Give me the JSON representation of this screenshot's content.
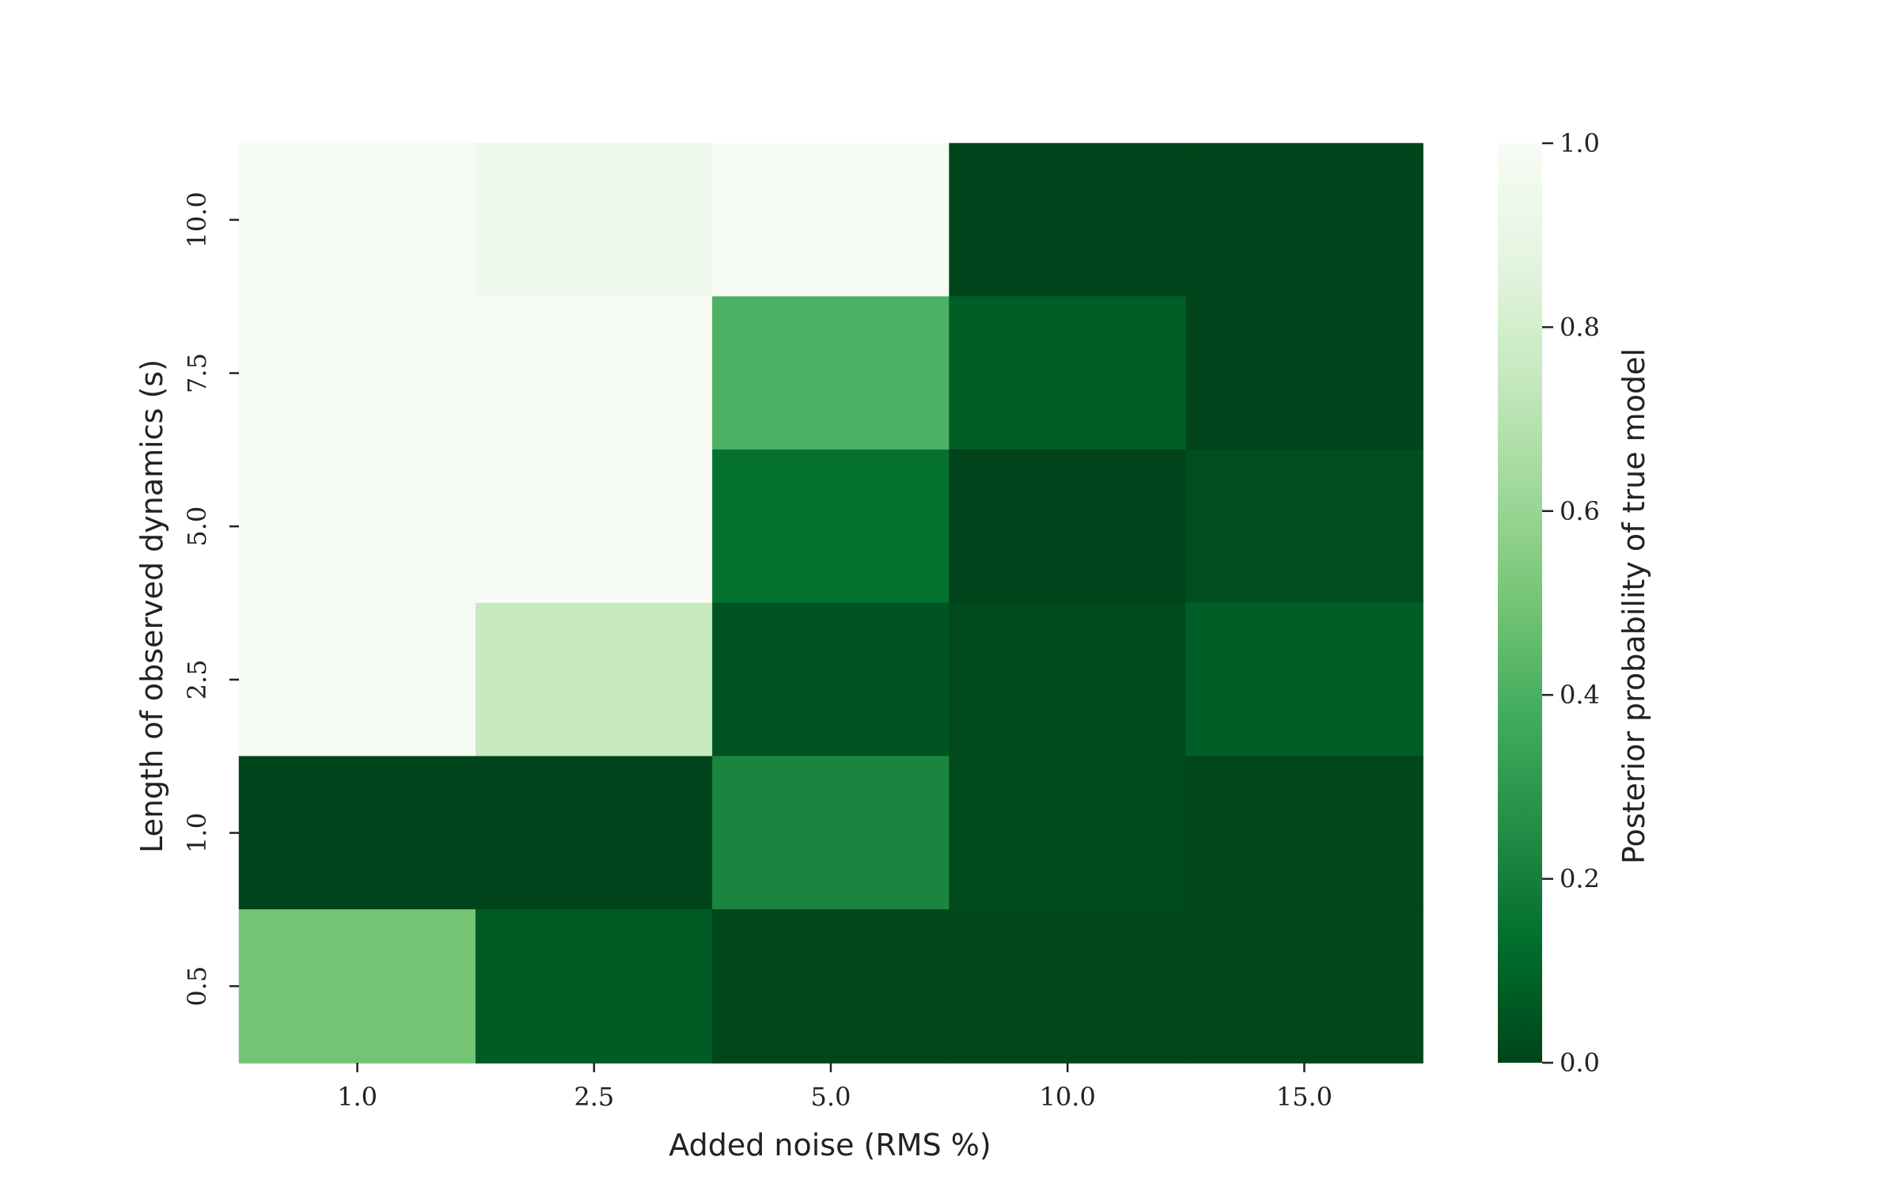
{
  "chart_data": {
    "type": "heatmap",
    "title": "",
    "xlabel": "Added noise (RMS %)",
    "ylabel": "Length of observed dynamics (s)",
    "x_categories": [
      "1.0",
      "2.5",
      "5.0",
      "10.0",
      "15.0"
    ],
    "y_categories": [
      "10.0",
      "7.5",
      "5.0",
      "2.5",
      "1.0",
      "0.5"
    ],
    "values": [
      [
        0.98,
        0.95,
        0.99,
        0.0,
        0.0
      ],
      [
        0.98,
        0.99,
        0.4,
        0.08,
        0.0
      ],
      [
        0.99,
        0.99,
        0.14,
        0.0,
        0.03
      ],
      [
        0.99,
        0.75,
        0.05,
        0.02,
        0.08
      ],
      [
        0.0,
        0.0,
        0.22,
        0.02,
        0.01
      ],
      [
        0.5,
        0.07,
        0.01,
        0.01,
        0.01
      ]
    ],
    "colorbar": {
      "label": "Posterior probability of true model",
      "range": [
        0.0,
        1.0
      ],
      "ticks": [
        "0.0",
        "0.2",
        "0.4",
        "0.6",
        "0.8",
        "1.0"
      ],
      "colormap": "Greens_r",
      "colors": [
        "#00441b",
        "#006d2c",
        "#238b45",
        "#41ab5d",
        "#74c476",
        "#a1d99b",
        "#c7e9c0",
        "#e5f5e0",
        "#f7fcf5"
      ]
    },
    "grid": false
  }
}
